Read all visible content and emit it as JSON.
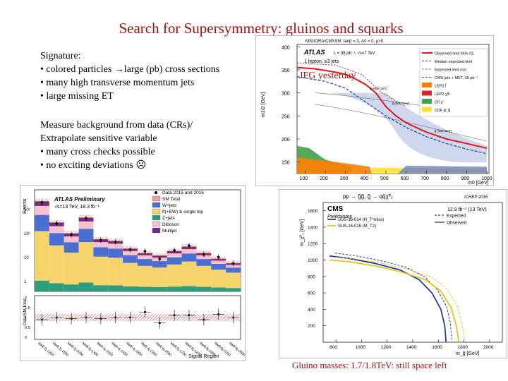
{
  "slide": {
    "title": "Search for Supersymmetry: gluinos and squarks",
    "signature_heading": "Signature:",
    "signature_bullets": [
      "• colored particles ",
      "large (pb) cross sections",
      "• many high transverse momentum jets",
      "• large missing ET"
    ],
    "arrow_glyph": "→",
    "measure_lines": [
      "Measure background from data (CRs)/",
      "Extrapolate sensitive variable",
      "• many cross checks possible",
      "• no exciting deviations "
    ],
    "sad_face": "☹",
    "jfg_note": "JFG yesterday",
    "gluino_note": "Gluino masses: 1.7/1.8TeV: still space left"
  },
  "plot_atlas_limits": {
    "header": "MSUGRA/CMSSM: tanβ = 3, A0 = 0, μ>0",
    "experiment": "ATLAS",
    "lumi": "L = 35 pb⁻¹, √s=7 TeV",
    "channel": "1 lepton, ≥3 jets",
    "ylabel": "m1/2 [GeV]",
    "xlabel": "m0 [GeV]",
    "legend": [
      {
        "label": "Observed limit 95% CL",
        "color": "#e0191c"
      },
      {
        "label": "Median expected limit",
        "color": "#1f3fa0"
      },
      {
        "label": "Expected limit ±1σ",
        "color": "#6b7fc7"
      },
      {
        "label": "CMS jets + MET, 35 pb⁻¹",
        "color": "#e0191c"
      },
      {
        "label": "LEP2 l̃",
        "color": "#ff7f00"
      },
      {
        "label": "LEP2 χ̃±",
        "color": "#d62728"
      },
      {
        "label": "D0 χ̃",
        "color": "#3fa24a"
      },
      {
        "label": "CDF g̃, q̃",
        "color": "#ffe135"
      }
    ],
    "contour_labels": [
      "q̃ (600 GeV)",
      "q̃ (500 GeV)",
      "g̃ (500 GeV)",
      "g̃ (400 GeV)"
    ],
    "chart_data": {
      "type": "line",
      "x_ticks": [
        100,
        200,
        300,
        400,
        500,
        600,
        700,
        800,
        900,
        1000
      ],
      "y_ticks": [
        150,
        200,
        250,
        300,
        350,
        400
      ],
      "xlim": [
        60,
        1010
      ],
      "ylim": [
        125,
        405
      ],
      "series": [
        {
          "name": "Observed limit 95% CL",
          "x": [
            60,
            150,
            250,
            300,
            350,
            400,
            450,
            500,
            550,
            600,
            700,
            800,
            900,
            1000
          ],
          "y": [
            355,
            352,
            345,
            340,
            330,
            318,
            300,
            270,
            250,
            235,
            215,
            200,
            190,
            180
          ]
        },
        {
          "name": "Median expected limit",
          "x": [
            60,
            200,
            300,
            400,
            500,
            600,
            700,
            800,
            900,
            1000
          ],
          "y": [
            335,
            325,
            310,
            280,
            250,
            225,
            205,
            190,
            178,
            168
          ]
        }
      ]
    }
  },
  "plot_atlas_events": {
    "experiment": "ATLAS Preliminary",
    "lumi": "√s=13 TeV, 18.3 fb⁻¹",
    "ylabel": "Events",
    "ratio_ylabel": "Data/SM Total",
    "xlabel": "Signal Region",
    "legend": [
      {
        "label": "Data 2015 and 2016",
        "color": "#000000"
      },
      {
        "label": "SM Total",
        "color": "#e8a0a0"
      },
      {
        "label": "W+jets",
        "color": "#4a6fd0"
      },
      {
        "label": "tt̄(+EW) & single top",
        "color": "#f5d46b"
      },
      {
        "label": "Z+jets",
        "color": "#2f9e7f"
      },
      {
        "label": "Diboson",
        "color": "#f5c0d0"
      },
      {
        "label": "Multijet",
        "color": "#6a2a8a"
      }
    ],
    "y_ticks": [
      "10³",
      "10²",
      "10",
      "1"
    ],
    "ratio_ticks": [
      "2",
      "1.5",
      "1",
      "0.5",
      "0"
    ],
    "regions": [
      "Meff-2j-1200",
      "Meff-2j-1600",
      "Meff-2j-2000",
      "Meff-3j-1300",
      "Meff-4j-1000",
      "Meff-4j-1400",
      "Meff-4j-1800",
      "Meff-4j-2200",
      "Meff-4j-2600",
      "Meff-5j-1700",
      "Meff-6j-1200",
      "Meff-6j-1800",
      "Meff-6j-2200",
      "Meff-6j-2600"
    ],
    "chart_data": {
      "type": "bar",
      "categories": [
        "Meff-2j-1200",
        "Meff-2j-1600",
        "Meff-2j-2000",
        "Meff-3j-1300",
        "Meff-4j-1000",
        "Meff-4j-1400",
        "Meff-4j-1800",
        "Meff-4j-2200",
        "Meff-4j-2600",
        "Meff-5j-1700",
        "Meff-6j-1200",
        "Meff-6j-1800",
        "Meff-6j-2200",
        "Meff-6j-2600"
      ],
      "values": [
        1100,
        160,
        60,
        250,
        35,
        30,
        15,
        10,
        8,
        12,
        18,
        10,
        6,
        4
      ],
      "data_points": [
        1000,
        150,
        55,
        240,
        33,
        28,
        14,
        12,
        6,
        13,
        20,
        9,
        7,
        4
      ],
      "ratio": [
        0.9,
        1.0,
        0.95,
        1.0,
        0.95,
        1.0,
        1.0,
        1.25,
        0.75,
        1.1,
        1.1,
        0.9,
        1.15,
        1.0
      ],
      "log_scale": true
    }
  },
  "plot_cms": {
    "process": "pp → g̃g̃, g̃ → qq̄χ̃⁰₁",
    "conference": "ICHEP 2016",
    "experiment": "CMS",
    "experiment_sub": "Preliminary",
    "lumi": "12.9 fb⁻¹ (13 TeV)",
    "legend": [
      {
        "label": "SUS-16-014 (H_T^miss)",
        "color": "#1f3fa0"
      },
      {
        "label": "SUS-16-015 (M_T2)",
        "color": "#e8c41a"
      },
      {
        "label": "Expected",
        "color": "#000000"
      },
      {
        "label": "Observed",
        "color": "#000000"
      }
    ],
    "ylabel": "m_χ̃⁰₁ [GeV]",
    "xlabel": "m_g̃ [GeV]",
    "y_ticks": [
      200,
      400,
      600,
      800,
      1000,
      1200,
      1400,
      1600
    ],
    "x_ticks": [
      800,
      1000,
      1200,
      1400,
      1600,
      1800,
      2000
    ],
    "chart_data": {
      "type": "line",
      "xlim": [
        700,
        2100
      ],
      "ylim": [
        0,
        1700
      ],
      "series": [
        {
          "name": "SUS-16-014 (H_T^miss)",
          "x": [
            750,
            900,
            1100,
            1300,
            1450,
            1550,
            1620,
            1650,
            1660
          ],
          "y": [
            1050,
            1020,
            960,
            880,
            760,
            600,
            400,
            200,
            0
          ]
        },
        {
          "name": "SUS-16-015 (M_T2)",
          "x": [
            750,
            900,
            1100,
            1300,
            1500,
            1620,
            1700,
            1740,
            1760
          ],
          "y": [
            1000,
            980,
            930,
            860,
            760,
            620,
            420,
            200,
            0
          ]
        }
      ]
    }
  }
}
